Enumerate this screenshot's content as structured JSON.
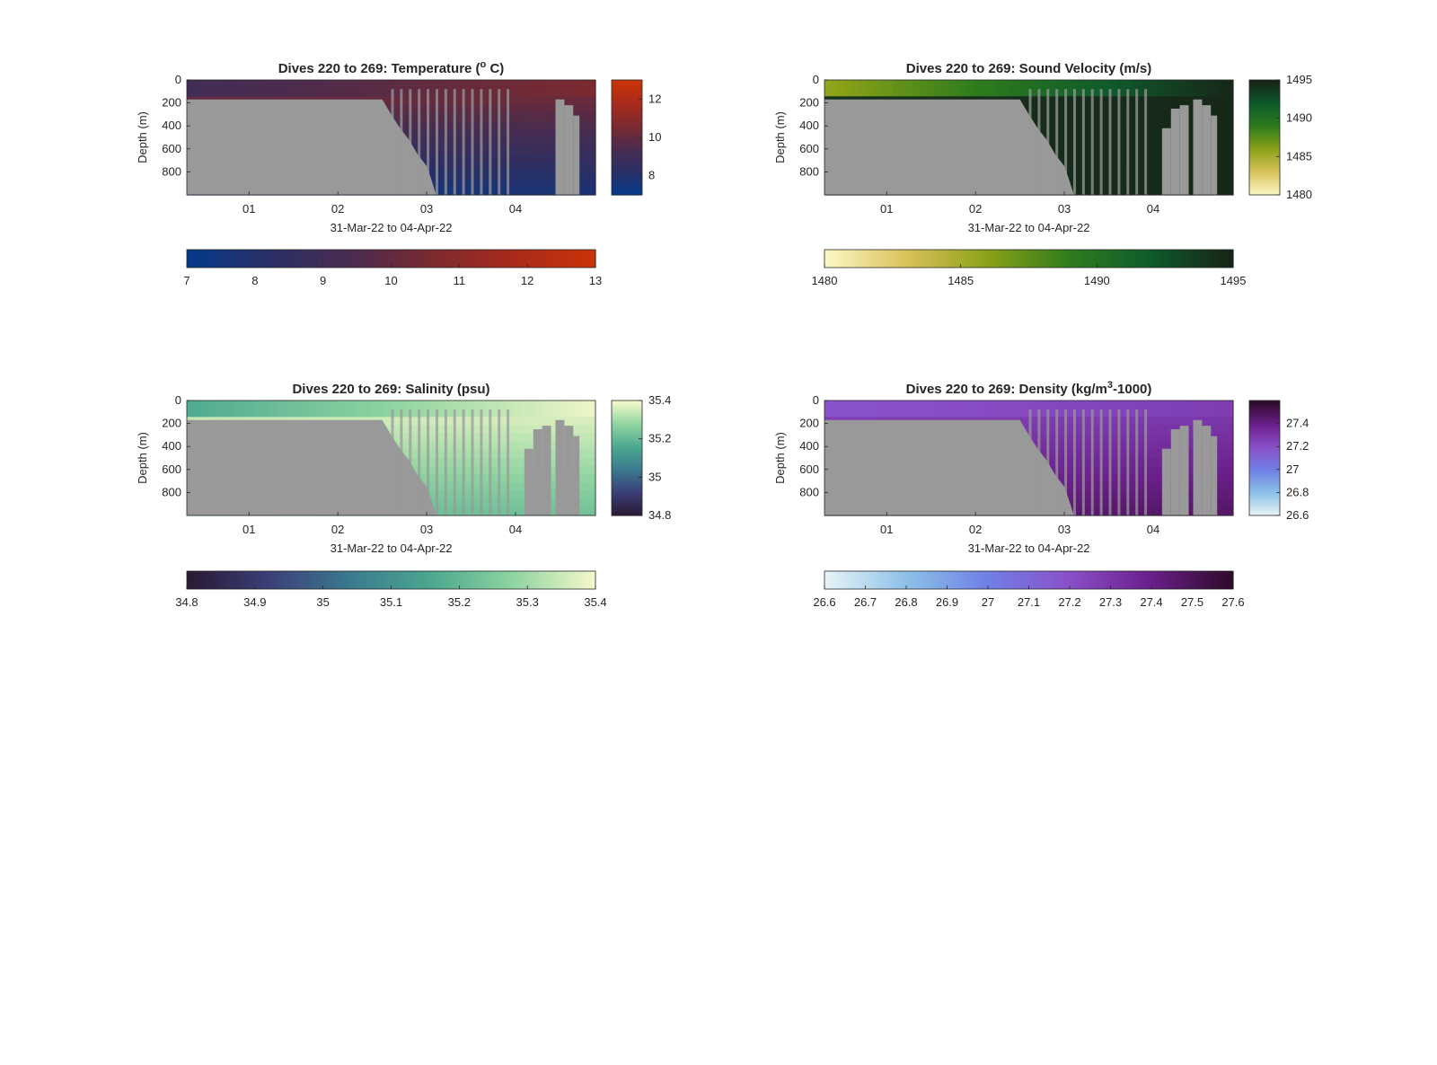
{
  "figure": {
    "background": "#ffffff",
    "missing_color": "#999999"
  },
  "chart_data": [
    {
      "type": "heatmap",
      "title": "Dives 220 to 269: Temperature (",
      "title_sup": "o",
      "title_tail": " C)",
      "xlabel": "31-Mar-22 to 04-Apr-22",
      "ylabel": "Depth (m)",
      "x_ticks": [
        "01",
        "02",
        "03",
        "04"
      ],
      "x_range": [
        0.3,
        4.9
      ],
      "y_ticks": [
        "0",
        "200",
        "400",
        "600",
        "800"
      ],
      "y_range": [
        0,
        1000
      ],
      "colormap": [
        "#053a8a",
        "#2a2f66",
        "#4a2c4f",
        "#7a2a30",
        "#a82a1c",
        "#c93408"
      ],
      "clim": [
        7,
        13
      ],
      "side_colorbar_ticks": [
        "8",
        "10",
        "12"
      ],
      "bottom_colorbar_ticks": [
        "7",
        "8",
        "9",
        "10",
        "11",
        "12",
        "13"
      ],
      "surface_value": 9.2,
      "mid_value": 10.5,
      "deep_value": 7.6,
      "missing_extra": [
        [
          4.45,
          4.55,
          170
        ],
        [
          4.55,
          4.65,
          220
        ],
        [
          4.65,
          4.72,
          310
        ]
      ]
    },
    {
      "type": "heatmap",
      "title": "Dives 220 to 269: Sound Velocity (m/s)",
      "title_sup": "",
      "title_tail": "",
      "xlabel": "31-Mar-22 to 04-Apr-22",
      "ylabel": "Depth (m)",
      "x_ticks": [
        "01",
        "02",
        "03",
        "04"
      ],
      "x_range": [
        0.3,
        4.9
      ],
      "y_ticks": [
        "0",
        "200",
        "400",
        "600",
        "800"
      ],
      "y_range": [
        0,
        1000
      ],
      "colormap": [
        "#fbf6c4",
        "#d9c159",
        "#8aa117",
        "#2f7c1d",
        "#0f5b2c",
        "#172417"
      ],
      "clim": [
        1480,
        1495
      ],
      "side_colorbar_ticks": [
        "1480",
        "1485",
        "1490",
        "1495"
      ],
      "bottom_colorbar_ticks": [
        "1480",
        "1485",
        "1490",
        "1495"
      ],
      "surface_value": 1486,
      "mid_value": 1494.5,
      "deep_value": 1494.5,
      "missing_extra": [
        [
          4.1,
          4.2,
          420
        ],
        [
          4.2,
          4.3,
          250
        ],
        [
          4.3,
          4.4,
          220
        ],
        [
          4.45,
          4.55,
          170
        ],
        [
          4.55,
          4.65,
          220
        ],
        [
          4.65,
          4.72,
          310
        ]
      ]
    },
    {
      "type": "heatmap",
      "title": "Dives 220 to 269: Salinity (psu)",
      "title_sup": "",
      "title_tail": "",
      "xlabel": "31-Mar-22 to 04-Apr-22",
      "ylabel": "Depth (m)",
      "x_ticks": [
        "01",
        "02",
        "03",
        "04"
      ],
      "x_range": [
        0.3,
        4.9
      ],
      "y_ticks": [
        "0",
        "200",
        "400",
        "600",
        "800"
      ],
      "y_range": [
        0,
        1000
      ],
      "colormap": [
        "#2a1a35",
        "#3b3f78",
        "#3b7a8f",
        "#4ba88f",
        "#8fd4a1",
        "#f3f7c9"
      ],
      "clim": [
        34.8,
        35.4
      ],
      "side_colorbar_ticks": [
        "34.8",
        "35",
        "35.2",
        "35.4"
      ],
      "bottom_colorbar_ticks": [
        "34.8",
        "34.9",
        "35",
        "35.1",
        "35.2",
        "35.3",
        "35.4"
      ],
      "surface_value": 35.18,
      "mid_value": 35.38,
      "deep_value": 35.22,
      "missing_extra": [
        [
          4.1,
          4.2,
          420
        ],
        [
          4.2,
          4.3,
          250
        ],
        [
          4.3,
          4.4,
          220
        ],
        [
          4.45,
          4.55,
          170
        ],
        [
          4.55,
          4.65,
          220
        ],
        [
          4.65,
          4.72,
          310
        ]
      ]
    },
    {
      "type": "heatmap",
      "title": "Dives 220 to 269: Density (kg/m",
      "title_sup": "3",
      "title_tail": "-1000)",
      "xlabel": "31-Mar-22 to 04-Apr-22",
      "ylabel": "Depth (m)",
      "x_ticks": [
        "01",
        "02",
        "03",
        "04"
      ],
      "x_range": [
        0.3,
        4.9
      ],
      "y_ticks": [
        "0",
        "200",
        "400",
        "600",
        "800"
      ],
      "y_range": [
        0,
        1000
      ],
      "colormap": [
        "#e6f3f6",
        "#8cc0e8",
        "#6f7fe6",
        "#8a4fc8",
        "#6a1f8a",
        "#2f0a2a"
      ],
      "clim": [
        26.6,
        27.6
      ],
      "side_colorbar_ticks": [
        "26.6",
        "26.8",
        "27",
        "27.2",
        "27.4"
      ],
      "bottom_colorbar_ticks": [
        "26.6",
        "26.7",
        "26.8",
        "26.9",
        "27",
        "27.1",
        "27.2",
        "27.3",
        "27.4",
        "27.5",
        "27.6"
      ],
      "surface_value": 27.2,
      "mid_value": 27.25,
      "deep_value": 27.45,
      "missing_extra": [
        [
          4.1,
          4.2,
          420
        ],
        [
          4.2,
          4.3,
          250
        ],
        [
          4.3,
          4.4,
          220
        ],
        [
          4.45,
          4.55,
          170
        ],
        [
          4.55,
          4.65,
          220
        ],
        [
          4.65,
          4.72,
          310
        ]
      ]
    }
  ]
}
